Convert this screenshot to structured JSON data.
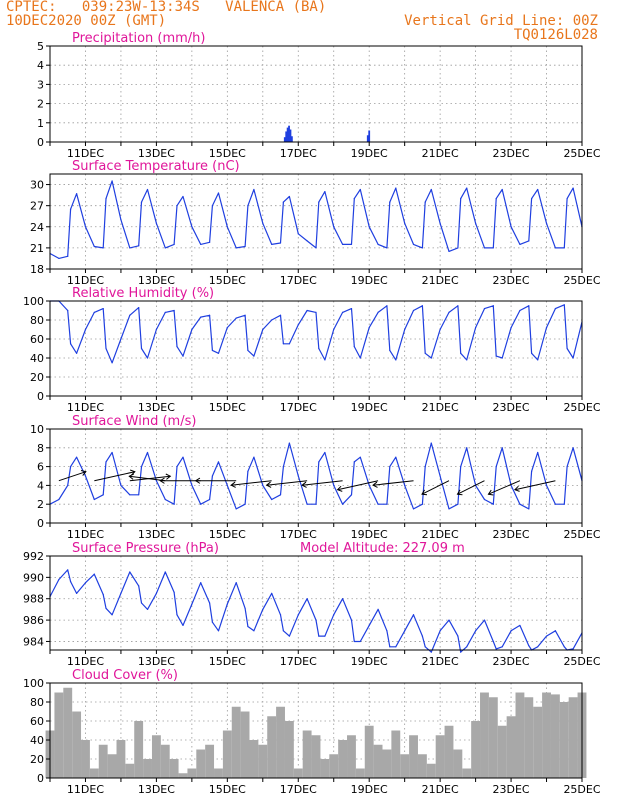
{
  "header": {
    "station_line": "CPTEC:   039:23W-13:34S   VALENCA (BA)",
    "date_line": "10DEC2020 00Z (GMT)",
    "grid_note": "Vertical Grid Line: 00Z",
    "code": "TQ0126L028",
    "color": "#e8761c"
  },
  "colors": {
    "title": "#e0169a",
    "line": "#1f3fe0",
    "cloud": "#a8a8a8",
    "arrow": "#000000"
  },
  "x_axis": {
    "start": "10DEC2020 00Z",
    "end": "25DEC2020 00Z",
    "ticks": [
      {
        "day": 1,
        "label": "11DEC"
      },
      {
        "day": 3,
        "label": "13DEC"
      },
      {
        "day": 5,
        "label": "15DEC"
      },
      {
        "day": 7,
        "label": "17DEC"
      },
      {
        "day": 9,
        "label": "19DEC"
      },
      {
        "day": 11,
        "label": "21DEC"
      },
      {
        "day": 13,
        "label": "23DEC"
      },
      {
        "day": 15,
        "label": "25DEC"
      }
    ]
  },
  "chart_data": [
    {
      "type": "bar",
      "title": "Precipitation (mm/h)",
      "ylim": [
        0,
        5
      ],
      "yticks": [
        0,
        1,
        2,
        3,
        4,
        5
      ],
      "grid": true,
      "x_days": [
        6.62,
        6.66,
        6.7,
        6.74,
        6.78,
        6.82,
        8.96,
        9.0
      ],
      "values": [
        0.25,
        0.55,
        0.75,
        0.85,
        0.65,
        0.3,
        0.35,
        0.6
      ]
    },
    {
      "type": "line",
      "title": "Surface Temperature (nC)",
      "ylim": [
        18,
        31.5
      ],
      "yticks": [
        18,
        21,
        24,
        27,
        30
      ],
      "grid": true,
      "x_days": [
        0.0,
        0.25,
        0.5,
        0.58,
        0.75,
        1.0,
        1.25,
        1.5,
        1.58,
        1.75,
        2.0,
        2.25,
        2.5,
        2.58,
        2.75,
        3.0,
        3.25,
        3.5,
        3.58,
        3.75,
        4.0,
        4.25,
        4.5,
        4.58,
        4.75,
        5.0,
        5.25,
        5.5,
        5.58,
        5.75,
        6.0,
        6.25,
        6.5,
        6.58,
        6.75,
        7.0,
        7.25,
        7.5,
        7.58,
        7.75,
        8.0,
        8.25,
        8.5,
        8.58,
        8.75,
        9.0,
        9.25,
        9.5,
        9.58,
        9.75,
        10.0,
        10.25,
        10.5,
        10.58,
        10.75,
        11.0,
        11.25,
        11.5,
        11.58,
        11.75,
        12.0,
        12.25,
        12.5,
        12.58,
        12.75,
        13.0,
        13.25,
        13.5,
        13.58,
        13.75,
        14.0,
        14.25,
        14.5,
        14.58,
        14.75,
        15.0
      ],
      "values": [
        20.2,
        19.5,
        19.8,
        26.5,
        28.7,
        24.0,
        21.2,
        21.0,
        28.0,
        30.5,
        25.0,
        21.0,
        21.3,
        27.5,
        29.3,
        24.5,
        21.0,
        21.5,
        27.0,
        28.3,
        24.0,
        21.5,
        21.8,
        27.0,
        28.8,
        24.0,
        21.0,
        21.2,
        27.0,
        29.3,
        24.5,
        21.5,
        21.7,
        27.5,
        28.3,
        23.0,
        22.0,
        21.0,
        27.5,
        29.0,
        24.0,
        21.5,
        21.5,
        28.0,
        29.3,
        24.0,
        21.5,
        21.0,
        27.5,
        29.5,
        24.5,
        21.5,
        21.0,
        27.5,
        29.3,
        24.5,
        20.5,
        21.0,
        28.0,
        29.5,
        24.5,
        21.0,
        21.0,
        28.0,
        29.3,
        24.0,
        21.5,
        22.0,
        28.0,
        29.3,
        24.5,
        21.0,
        21.0,
        28.0,
        29.5,
        24.0
      ]
    },
    {
      "type": "line",
      "title": "Relative Humidity (%)",
      "ylim": [
        0,
        100
      ],
      "yticks": [
        0,
        20,
        40,
        60,
        80,
        100
      ],
      "grid": true,
      "x_days": [
        0.0,
        0.25,
        0.5,
        0.58,
        0.75,
        1.0,
        1.25,
        1.5,
        1.58,
        1.75,
        2.0,
        2.25,
        2.5,
        2.58,
        2.75,
        3.0,
        3.25,
        3.5,
        3.58,
        3.75,
        4.0,
        4.25,
        4.5,
        4.58,
        4.75,
        5.0,
        5.25,
        5.5,
        5.58,
        5.75,
        6.0,
        6.25,
        6.5,
        6.58,
        6.75,
        7.0,
        7.25,
        7.5,
        7.58,
        7.75,
        8.0,
        8.25,
        8.5,
        8.58,
        8.75,
        9.0,
        9.25,
        9.5,
        9.58,
        9.75,
        10.0,
        10.25,
        10.5,
        10.58,
        10.75,
        11.0,
        11.25,
        11.5,
        11.58,
        11.75,
        12.0,
        12.25,
        12.5,
        12.58,
        12.75,
        13.0,
        13.25,
        13.5,
        13.58,
        13.75,
        14.0,
        14.25,
        14.5,
        14.58,
        14.75,
        15.0
      ],
      "values": [
        100,
        100,
        90,
        55,
        45,
        70,
        88,
        92,
        50,
        35,
        60,
        85,
        93,
        50,
        40,
        70,
        88,
        90,
        52,
        42,
        70,
        83,
        85,
        48,
        45,
        72,
        82,
        85,
        48,
        42,
        70,
        80,
        85,
        55,
        55,
        75,
        90,
        88,
        50,
        38,
        70,
        88,
        92,
        52,
        40,
        72,
        88,
        95,
        48,
        38,
        70,
        90,
        95,
        45,
        40,
        70,
        88,
        95,
        45,
        38,
        72,
        92,
        95,
        42,
        40,
        72,
        90,
        95,
        45,
        38,
        72,
        92,
        96,
        50,
        40,
        78
      ]
    },
    {
      "type": "line",
      "title": "Surface Wind (m/s)",
      "ylim": [
        0,
        10
      ],
      "yticks": [
        0,
        2,
        4,
        6,
        8,
        10
      ],
      "grid": true,
      "x_days": [
        0.0,
        0.25,
        0.5,
        0.58,
        0.75,
        1.0,
        1.25,
        1.5,
        1.58,
        1.75,
        2.0,
        2.25,
        2.5,
        2.58,
        2.75,
        3.0,
        3.25,
        3.5,
        3.58,
        3.75,
        4.0,
        4.25,
        4.5,
        4.58,
        4.75,
        5.0,
        5.25,
        5.5,
        5.58,
        5.75,
        6.0,
        6.25,
        6.5,
        6.58,
        6.75,
        7.0,
        7.25,
        7.5,
        7.58,
        7.75,
        8.0,
        8.25,
        8.5,
        8.58,
        8.75,
        9.0,
        9.25,
        9.5,
        9.58,
        9.75,
        10.0,
        10.25,
        10.5,
        10.58,
        10.75,
        11.0,
        11.25,
        11.5,
        11.58,
        11.75,
        12.0,
        12.25,
        12.5,
        12.58,
        12.75,
        13.0,
        13.25,
        13.5,
        13.58,
        13.75,
        14.0,
        14.25,
        14.5,
        14.58,
        14.75,
        15.0
      ],
      "values": [
        2.0,
        2.5,
        4.0,
        6.0,
        7.0,
        5.0,
        2.5,
        3.0,
        6.5,
        7.5,
        4.0,
        3.0,
        3.0,
        6.0,
        7.5,
        4.5,
        2.5,
        2.0,
        6.0,
        7.0,
        4.0,
        2.0,
        2.5,
        5.0,
        6.5,
        4.0,
        1.5,
        2.0,
        5.5,
        7.0,
        4.0,
        2.5,
        3.0,
        6.0,
        8.5,
        5.0,
        2.0,
        2.0,
        6.5,
        7.5,
        4.0,
        2.0,
        3.0,
        6.5,
        7.0,
        4.0,
        2.0,
        2.0,
        6.0,
        7.0,
        4.0,
        1.5,
        2.0,
        6.0,
        8.5,
        5.0,
        1.5,
        2.0,
        6.0,
        8.0,
        4.0,
        2.5,
        2.0,
        6.0,
        8.0,
        4.0,
        2.0,
        1.5,
        5.5,
        7.5,
        4.0,
        2.0,
        2.0,
        6.0,
        8.0,
        4.5
      ],
      "vectors": {
        "x_days": [
          0.25,
          1.25,
          2.25,
          3.25,
          4.25,
          5.25,
          6.25,
          7.25,
          8.25,
          9.25,
          10.25,
          11.25,
          12.25,
          13.25,
          14.25
        ],
        "u": [
          3.0,
          4.5,
          4.5,
          -4.0,
          -4.5,
          -4.5,
          -4.5,
          -4.5,
          -4.5,
          -4.5,
          -4.5,
          -3.0,
          -3.0,
          -3.5,
          -4.5
        ],
        "v": [
          1.0,
          1.0,
          0.5,
          0.5,
          0.0,
          0.0,
          -0.5,
          -0.5,
          -0.5,
          -1.0,
          -0.5,
          -1.5,
          -1.5,
          -1.5,
          -1.0
        ]
      }
    },
    {
      "type": "line",
      "title": "Surface Pressure (hPa)",
      "annotation": "Model Altitude: 227.09 m",
      "ylim": [
        983.2,
        992
      ],
      "yticks": [
        984,
        986,
        988,
        990,
        992
      ],
      "grid": true,
      "x_days": [
        0.0,
        0.25,
        0.5,
        0.58,
        0.75,
        1.0,
        1.25,
        1.5,
        1.58,
        1.75,
        2.0,
        2.25,
        2.5,
        2.58,
        2.75,
        3.0,
        3.25,
        3.5,
        3.58,
        3.75,
        4.0,
        4.25,
        4.5,
        4.58,
        4.75,
        5.0,
        5.25,
        5.5,
        5.58,
        5.75,
        6.0,
        6.25,
        6.5,
        6.58,
        6.75,
        7.0,
        7.25,
        7.5,
        7.58,
        7.75,
        8.0,
        8.25,
        8.5,
        8.58,
        8.75,
        9.0,
        9.25,
        9.5,
        9.58,
        9.75,
        10.0,
        10.25,
        10.5,
        10.58,
        10.75,
        11.0,
        11.25,
        11.5,
        11.58,
        11.75,
        12.0,
        12.25,
        12.5,
        12.58,
        12.75,
        13.0,
        13.25,
        13.5,
        13.58,
        13.75,
        14.0,
        14.25,
        14.5,
        14.58,
        14.75,
        15.0
      ],
      "values": [
        988.2,
        989.8,
        990.7,
        989.6,
        988.5,
        989.5,
        990.3,
        988.4,
        987.1,
        986.5,
        988.5,
        990.5,
        989.2,
        987.6,
        987.0,
        988.5,
        990.5,
        988.6,
        986.5,
        985.5,
        987.5,
        989.5,
        987.6,
        985.8,
        985.0,
        987.5,
        989.5,
        987.1,
        985.4,
        985.0,
        987.0,
        988.5,
        986.5,
        985.0,
        984.5,
        986.5,
        988.0,
        986.0,
        984.5,
        984.5,
        986.5,
        988.0,
        986.0,
        984.0,
        984.0,
        985.5,
        987.0,
        985.0,
        983.5,
        983.5,
        985.0,
        986.5,
        984.5,
        983.5,
        983.0,
        985.0,
        986.0,
        984.5,
        983.0,
        983.5,
        985.0,
        986.0,
        984.0,
        983.3,
        983.5,
        985.0,
        985.5,
        983.6,
        983.2,
        983.5,
        984.5,
        985.0,
        983.5,
        983.2,
        983.3,
        984.8
      ]
    },
    {
      "type": "area",
      "title": "Cloud Cover (%)",
      "ylim": [
        0,
        100
      ],
      "yticks": [
        0,
        20,
        40,
        60,
        80,
        100
      ],
      "grid": true,
      "x_days": [
        0.0,
        0.25,
        0.5,
        0.75,
        1.0,
        1.25,
        1.5,
        1.75,
        2.0,
        2.25,
        2.5,
        2.75,
        3.0,
        3.25,
        3.5,
        3.75,
        4.0,
        4.25,
        4.5,
        4.75,
        5.0,
        5.25,
        5.5,
        5.75,
        6.0,
        6.25,
        6.5,
        6.75,
        7.0,
        7.25,
        7.5,
        7.75,
        8.0,
        8.25,
        8.5,
        8.75,
        9.0,
        9.25,
        9.5,
        9.75,
        10.0,
        10.25,
        10.5,
        10.75,
        11.0,
        11.25,
        11.5,
        11.75,
        12.0,
        12.25,
        12.5,
        12.75,
        13.0,
        13.25,
        13.5,
        13.75,
        14.0,
        14.25,
        14.5,
        14.75,
        15.0
      ],
      "values": [
        50,
        90,
        95,
        70,
        40,
        10,
        35,
        25,
        40,
        15,
        60,
        20,
        45,
        35,
        20,
        5,
        10,
        30,
        35,
        10,
        50,
        75,
        70,
        40,
        35,
        65,
        75,
        60,
        10,
        50,
        45,
        20,
        25,
        40,
        45,
        10,
        55,
        35,
        30,
        50,
        25,
        45,
        25,
        15,
        45,
        55,
        30,
        10,
        60,
        90,
        85,
        55,
        65,
        90,
        85,
        75,
        90,
        88,
        80,
        85,
        90
      ]
    }
  ]
}
